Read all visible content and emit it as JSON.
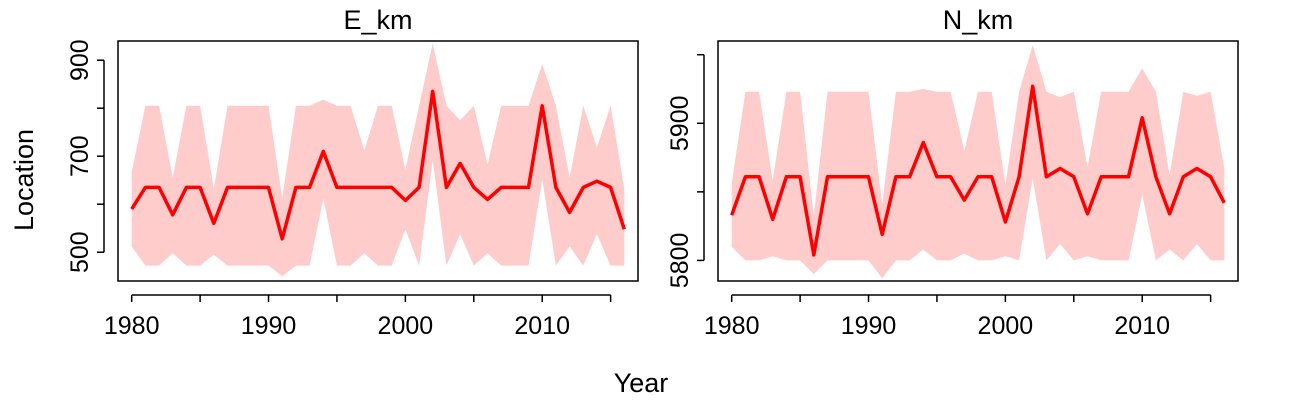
{
  "figure": {
    "xlabel": "Year",
    "ylabel": "Location"
  },
  "colors": {
    "line": "#ff0000",
    "band": "#ffcccc",
    "axis": "#000000",
    "background": "#ffffff"
  },
  "chart_data": [
    {
      "type": "line",
      "title": "E_km",
      "xlabel": "Year",
      "ylabel": "Location",
      "xlim": [
        1979,
        2017
      ],
      "ylim": [
        440,
        940
      ],
      "xticks": [
        1980,
        1985,
        1990,
        1995,
        2000,
        2005,
        2010,
        2015
      ],
      "xtick_labels": [
        "1980",
        "",
        "1990",
        "",
        "2000",
        "",
        "2010",
        ""
      ],
      "yticks": [
        500,
        600,
        700,
        800,
        900
      ],
      "ytick_labels": [
        "500",
        "",
        "700",
        "",
        "900"
      ],
      "grid": false,
      "x": [
        1980,
        1981,
        1982,
        1983,
        1984,
        1985,
        1986,
        1987,
        1988,
        1989,
        1990,
        1991,
        1992,
        1993,
        1994,
        1995,
        1996,
        1997,
        1998,
        1999,
        2000,
        2001,
        2002,
        2003,
        2004,
        2005,
        2006,
        2007,
        2008,
        2009,
        2010,
        2011,
        2012,
        2013,
        2014,
        2015,
        2016
      ],
      "series": [
        {
          "values": [
            590,
            635,
            635,
            578,
            635,
            635,
            560,
            635,
            635,
            635,
            635,
            528,
            635,
            635,
            710,
            635,
            635,
            635,
            635,
            635,
            608,
            635,
            835,
            635,
            685,
            635,
            610,
            635,
            635,
            635,
            805,
            635,
            583,
            635,
            648,
            635,
            548
          ],
          "lower": [
            512,
            472,
            472,
            498,
            472,
            472,
            495,
            472,
            472,
            472,
            472,
            450,
            472,
            472,
            612,
            472,
            472,
            498,
            472,
            472,
            548,
            472,
            692,
            472,
            538,
            472,
            498,
            472,
            472,
            472,
            652,
            472,
            512,
            472,
            538,
            472,
            472
          ],
          "upper": [
            668,
            805,
            805,
            655,
            805,
            805,
            632,
            805,
            805,
            805,
            805,
            612,
            805,
            805,
            818,
            805,
            805,
            712,
            805,
            805,
            672,
            805,
            935,
            805,
            775,
            805,
            682,
            805,
            805,
            805,
            892,
            805,
            655,
            805,
            718,
            805,
            632
          ]
        }
      ]
    },
    {
      "type": "line",
      "title": "N_km",
      "xlabel": "Year",
      "ylabel": "",
      "xlim": [
        1979,
        2017
      ],
      "ylim": [
        5785,
        5960
      ],
      "xticks": [
        1980,
        1985,
        1990,
        1995,
        2000,
        2005,
        2010,
        2015
      ],
      "xtick_labels": [
        "1980",
        "",
        "1990",
        "",
        "2000",
        "",
        "2010",
        ""
      ],
      "yticks": [
        5800,
        5850,
        5900,
        5950
      ],
      "ytick_labels": [
        "5800",
        "",
        "5900",
        ""
      ],
      "grid": false,
      "x": [
        1980,
        1981,
        1982,
        1983,
        1984,
        1985,
        1986,
        1987,
        1988,
        1989,
        1990,
        1991,
        1992,
        1993,
        1994,
        1995,
        1996,
        1997,
        1998,
        1999,
        2000,
        2001,
        2002,
        2003,
        2004,
        2005,
        2006,
        2007,
        2008,
        2009,
        2010,
        2011,
        2012,
        2013,
        2014,
        2015,
        2016
      ],
      "series": [
        {
          "values": [
            5833,
            5861,
            5861,
            5830,
            5861,
            5861,
            5804,
            5861,
            5861,
            5861,
            5861,
            5819,
            5861,
            5861,
            5886,
            5861,
            5861,
            5844,
            5861,
            5861,
            5828,
            5861,
            5927,
            5861,
            5867,
            5861,
            5834,
            5861,
            5861,
            5861,
            5904,
            5861,
            5834,
            5861,
            5867,
            5861,
            5842
          ],
          "lower": [
            5810,
            5800,
            5800,
            5803,
            5800,
            5800,
            5790,
            5800,
            5800,
            5800,
            5800,
            5787,
            5800,
            5800,
            5808,
            5800,
            5800,
            5805,
            5800,
            5800,
            5803,
            5800,
            5860,
            5800,
            5812,
            5800,
            5803,
            5800,
            5800,
            5800,
            5848,
            5800,
            5808,
            5800,
            5812,
            5800,
            5800
          ],
          "upper": [
            5856,
            5923,
            5923,
            5858,
            5923,
            5923,
            5832,
            5923,
            5923,
            5923,
            5923,
            5841,
            5923,
            5923,
            5925,
            5923,
            5923,
            5880,
            5923,
            5923,
            5855,
            5923,
            5957,
            5923,
            5919,
            5923,
            5868,
            5923,
            5923,
            5923,
            5940,
            5923,
            5862,
            5923,
            5920,
            5923,
            5867
          ]
        }
      ]
    }
  ]
}
